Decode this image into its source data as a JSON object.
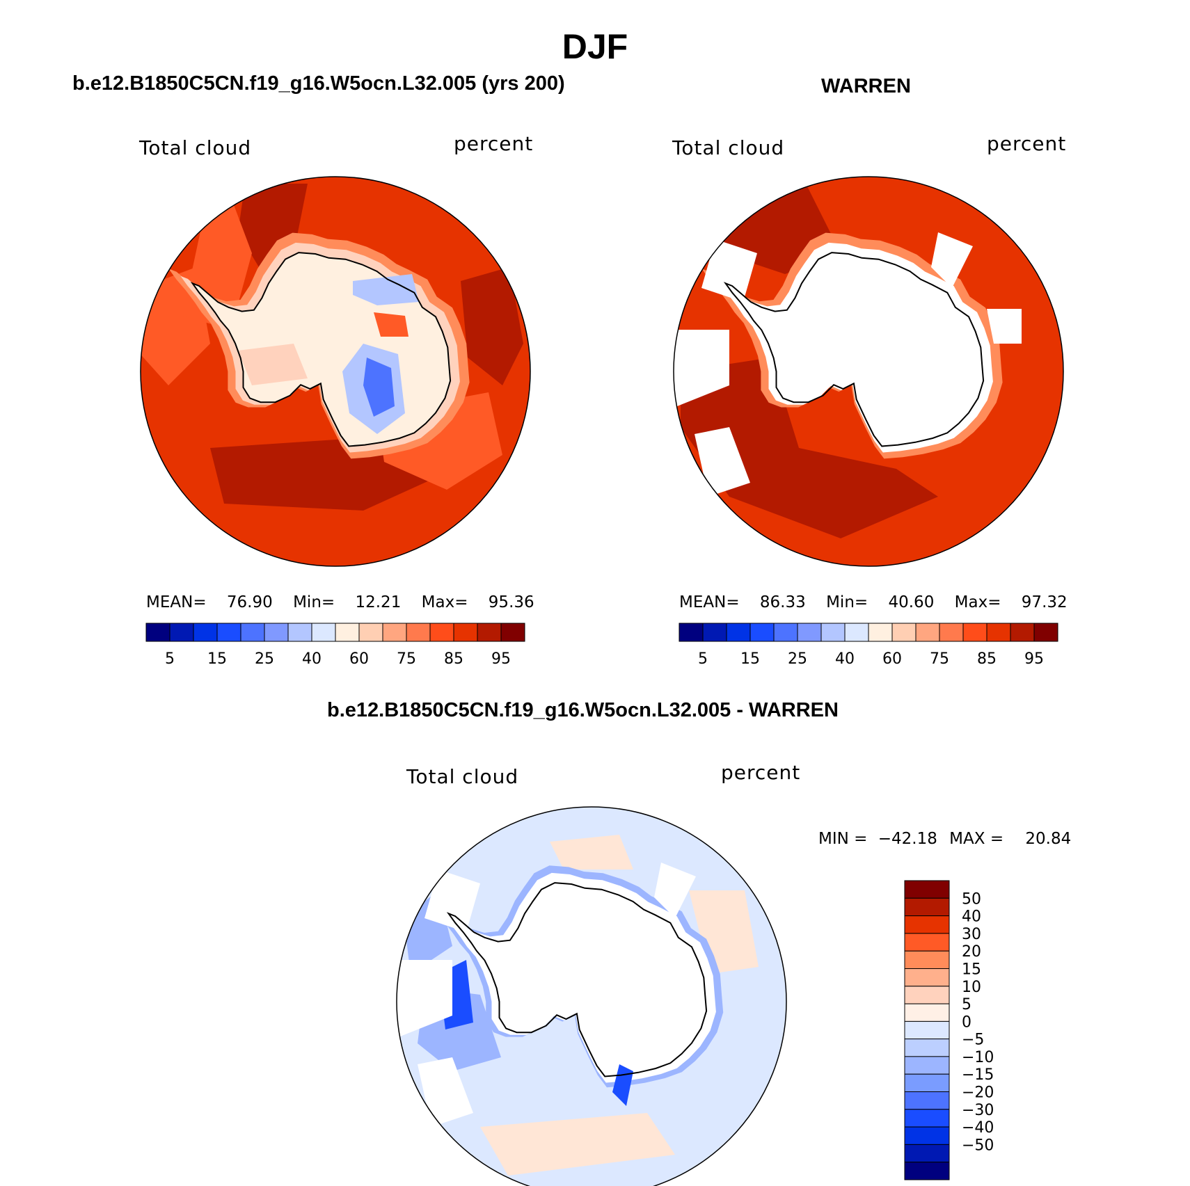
{
  "figure": {
    "title": "DJF"
  },
  "panels": {
    "model": {
      "case_title": "b.e12.B1850C5CN.f19_g16.W5ocn.L32.005 (yrs 200)",
      "variable": "Total cloud",
      "units": "percent",
      "stats": {
        "mean_label": "MEAN=",
        "mean": "76.90",
        "min_label": "Min=",
        "min": "12.21",
        "max_label": "Max=",
        "max": "95.36"
      }
    },
    "obs": {
      "case_title": "WARREN",
      "variable": "Total cloud",
      "units": "percent",
      "stats": {
        "mean_label": "MEAN=",
        "mean": "86.33",
        "min_label": "Min=",
        "min": "40.60",
        "max_label": "Max=",
        "max": "97.32"
      }
    },
    "diff": {
      "case_title": "b.e12.B1850C5CN.f19_g16.W5ocn.L32.005 - WARREN",
      "variable": "Total cloud",
      "units": "percent",
      "minmax": {
        "min_label": "MIN =",
        "min": "−42.18",
        "max_label": "MAX =",
        "max": "20.84"
      }
    }
  },
  "colorbars": {
    "absolute": {
      "colors": [
        "#00007f",
        "#0019b3",
        "#0033e6",
        "#1a4dff",
        "#4d73ff",
        "#8099ff",
        "#b3c6ff",
        "#dce8ff",
        "#fff0e0",
        "#ffcfb3",
        "#ffa680",
        "#ff7a4d",
        "#ff4d1a",
        "#e63300",
        "#b31a00",
        "#800000"
      ],
      "tick_labels": [
        "5",
        "15",
        "25",
        "40",
        "60",
        "75",
        "85",
        "95"
      ]
    },
    "difference": {
      "colors": [
        "#800000",
        "#b31a00",
        "#e63300",
        "#ff5a26",
        "#ff8c5a",
        "#ffb08c",
        "#ffd2bd",
        "#fff0e6",
        "#dce8ff",
        "#bccfff",
        "#9cb5ff",
        "#7a9cff",
        "#4d73ff",
        "#1a4dff",
        "#0033e6",
        "#0019b3",
        "#00007f"
      ],
      "tick_labels": [
        "50",
        "40",
        "30",
        "20",
        "15",
        "10",
        "5",
        "0",
        "−5",
        "−10",
        "−15",
        "−20",
        "−30",
        "−40",
        "−50"
      ]
    }
  },
  "map_colors": {
    "model_background": "#e63300",
    "model_dark": "#b31a00",
    "model_mid": "#ff5a26",
    "model_light": "#ff8c5a",
    "model_pale": "#ffd2bd",
    "model_ice": "#fff0e0",
    "model_blue1": "#b3c6ff",
    "model_blue2": "#4d73ff",
    "obs_background": "#e63300",
    "obs_dark": "#b31a00",
    "obs_missing": "#ffffff",
    "diff_background": "#dce8ff",
    "diff_blue": "#9cb5ff",
    "diff_deep": "#1a4dff",
    "diff_pos": "#ffe6d6",
    "diff_missing": "#ffffff",
    "coast": "#000000"
  }
}
